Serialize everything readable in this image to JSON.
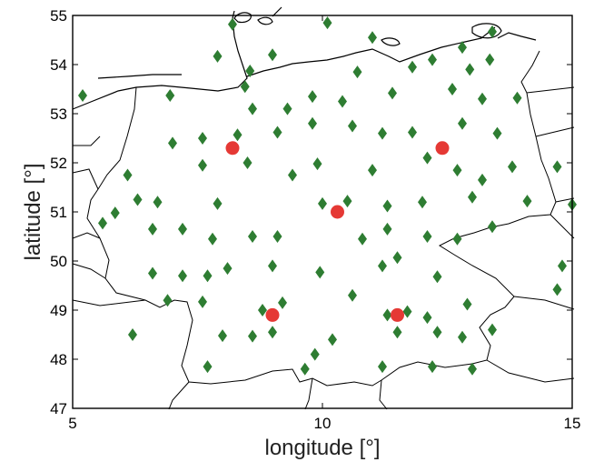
{
  "chart_data": {
    "type": "scatter",
    "title": "",
    "xlabel": "longitude [°]",
    "ylabel": "latitude [°]",
    "xlim": [
      5,
      15
    ],
    "ylim": [
      47,
      55
    ],
    "xticks": [
      "5",
      "10",
      "15"
    ],
    "yticks": [
      "47",
      "48",
      "49",
      "50",
      "51",
      "52",
      "53",
      "54",
      "55"
    ],
    "grid": false,
    "colors": {
      "diamond": "#2e7d32",
      "circle": "#e53935"
    },
    "series": [
      {
        "marker": "diamond",
        "points": [
          [
            5.2,
            53.37
          ],
          [
            7.9,
            54.17
          ],
          [
            8.2,
            54.82
          ],
          [
            9.0,
            54.2
          ],
          [
            10.1,
            54.85
          ],
          [
            11.0,
            54.55
          ],
          [
            13.4,
            54.67
          ],
          [
            8.55,
            53.87
          ],
          [
            8.45,
            53.55
          ],
          [
            6.95,
            53.37
          ],
          [
            9.8,
            53.35
          ],
          [
            10.4,
            53.25
          ],
          [
            10.7,
            53.85
          ],
          [
            11.4,
            53.42
          ],
          [
            11.8,
            53.95
          ],
          [
            12.2,
            54.1
          ],
          [
            12.8,
            54.35
          ],
          [
            12.95,
            53.9
          ],
          [
            13.35,
            54.1
          ],
          [
            12.6,
            53.5
          ],
          [
            13.2,
            53.3
          ],
          [
            13.9,
            53.32
          ],
          [
            8.6,
            53.1
          ],
          [
            9.3,
            53.1
          ],
          [
            9.8,
            52.8
          ],
          [
            10.6,
            52.75
          ],
          [
            11.2,
            52.6
          ],
          [
            11.8,
            52.62
          ],
          [
            12.8,
            52.8
          ],
          [
            13.5,
            52.6
          ],
          [
            7.0,
            52.4
          ],
          [
            7.6,
            52.5
          ],
          [
            8.3,
            52.57
          ],
          [
            9.1,
            52.62
          ],
          [
            12.1,
            52.1
          ],
          [
            12.7,
            51.85
          ],
          [
            13.2,
            51.65
          ],
          [
            6.1,
            51.75
          ],
          [
            7.6,
            51.95
          ],
          [
            8.5,
            52.0
          ],
          [
            9.4,
            51.75
          ],
          [
            9.9,
            51.98
          ],
          [
            11.0,
            51.85
          ],
          [
            13.8,
            51.92
          ],
          [
            14.7,
            51.92
          ],
          [
            6.3,
            51.25
          ],
          [
            6.7,
            51.2
          ],
          [
            7.9,
            51.17
          ],
          [
            10.0,
            51.17
          ],
          [
            10.5,
            51.22
          ],
          [
            11.3,
            51.12
          ],
          [
            12.0,
            51.2
          ],
          [
            13.0,
            51.3
          ],
          [
            14.1,
            51.22
          ],
          [
            15.0,
            51.15
          ],
          [
            5.85,
            50.98
          ],
          [
            5.6,
            50.77
          ],
          [
            6.6,
            50.65
          ],
          [
            7.2,
            50.65
          ],
          [
            7.8,
            50.45
          ],
          [
            8.6,
            50.5
          ],
          [
            9.1,
            50.5
          ],
          [
            10.8,
            50.45
          ],
          [
            11.3,
            50.65
          ],
          [
            12.1,
            50.5
          ],
          [
            12.7,
            50.45
          ],
          [
            13.4,
            50.7
          ],
          [
            14.8,
            49.9
          ],
          [
            6.6,
            49.75
          ],
          [
            7.2,
            49.7
          ],
          [
            7.7,
            49.7
          ],
          [
            8.1,
            49.85
          ],
          [
            9.0,
            49.9
          ],
          [
            9.95,
            49.77
          ],
          [
            11.2,
            49.9
          ],
          [
            11.5,
            50.07
          ],
          [
            12.3,
            49.68
          ],
          [
            12.9,
            49.12
          ],
          [
            14.7,
            49.42
          ],
          [
            6.9,
            49.2
          ],
          [
            7.6,
            49.17
          ],
          [
            8.8,
            49.0
          ],
          [
            9.2,
            49.15
          ],
          [
            10.6,
            49.3
          ],
          [
            11.7,
            48.97
          ],
          [
            11.3,
            48.9
          ],
          [
            6.2,
            48.5
          ],
          [
            8.0,
            48.48
          ],
          [
            8.6,
            48.47
          ],
          [
            9.0,
            48.55
          ],
          [
            10.2,
            48.4
          ],
          [
            11.5,
            48.55
          ],
          [
            12.3,
            48.55
          ],
          [
            12.8,
            48.45
          ],
          [
            13.4,
            48.6
          ],
          [
            7.7,
            47.85
          ],
          [
            9.65,
            47.8
          ],
          [
            9.85,
            48.1
          ],
          [
            11.2,
            47.85
          ],
          [
            12.2,
            47.85
          ],
          [
            13.0,
            47.8
          ],
          [
            12.1,
            48.85
          ]
        ]
      },
      {
        "marker": "circle",
        "points": [
          [
            8.2,
            52.3
          ],
          [
            12.4,
            52.3
          ],
          [
            10.3,
            51.0
          ],
          [
            9.0,
            48.9
          ],
          [
            11.5,
            48.9
          ]
        ]
      }
    ]
  }
}
